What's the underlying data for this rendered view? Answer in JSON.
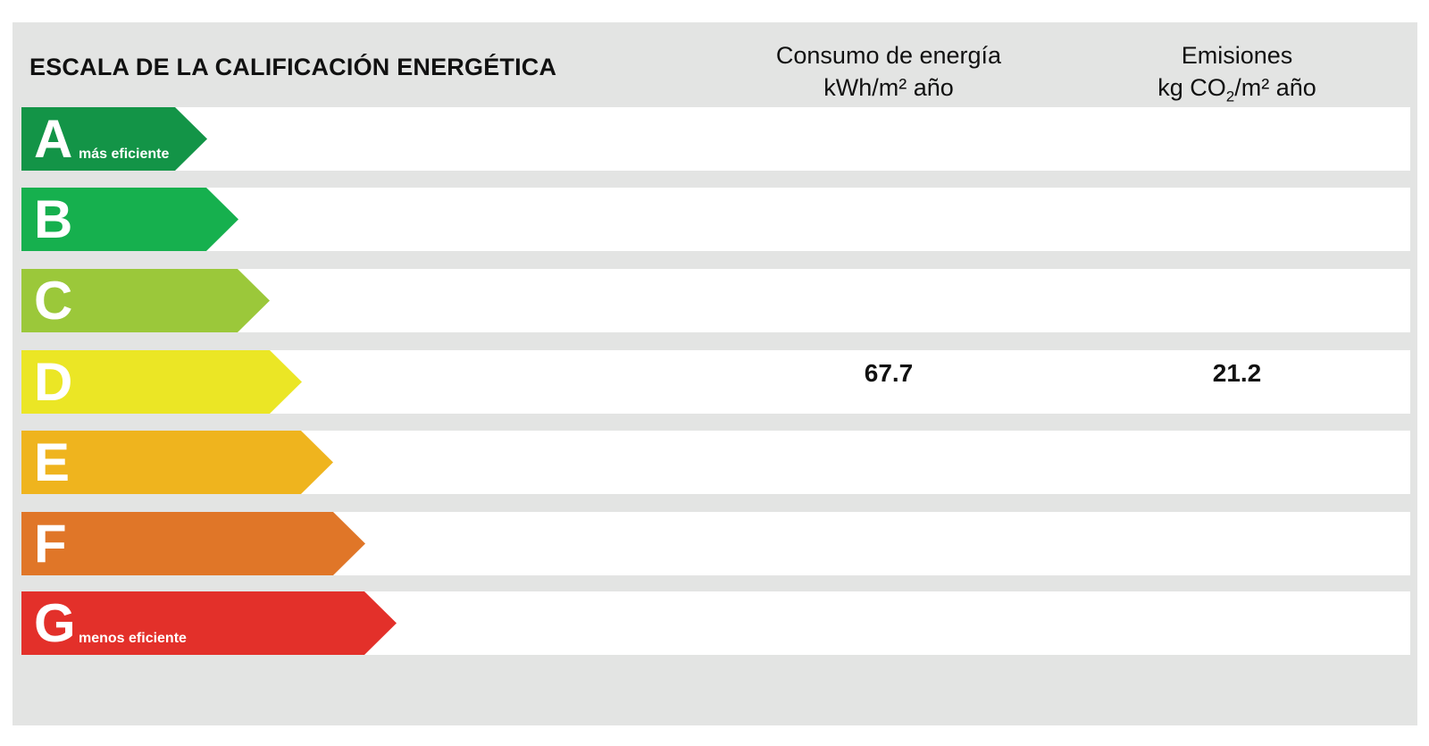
{
  "title": "ESCALA DE LA CALIFICACIÓN ENERGÉTICA",
  "columns": {
    "consumption": {
      "line1": "Consumo de energía",
      "line2": "kWh/m² año"
    },
    "emissions": {
      "line1": "Emisiones",
      "line2_pre": "kg CO",
      "line2_sub": "2",
      "line2_post": "/m² año"
    }
  },
  "ratings": [
    {
      "letter": "A",
      "sub": "más eficiente",
      "color": "#139447",
      "consumption": "",
      "emissions": ""
    },
    {
      "letter": "B",
      "sub": "",
      "color": "#16b04e",
      "consumption": "",
      "emissions": ""
    },
    {
      "letter": "C",
      "sub": "",
      "color": "#9bc83a",
      "consumption": "",
      "emissions": ""
    },
    {
      "letter": "D",
      "sub": "",
      "color": "#ebe625",
      "consumption": "67.7",
      "emissions": "21.2"
    },
    {
      "letter": "E",
      "sub": "",
      "color": "#efb41e",
      "consumption": "",
      "emissions": ""
    },
    {
      "letter": "F",
      "sub": "",
      "color": "#e07628",
      "consumption": "",
      "emissions": ""
    },
    {
      "letter": "G",
      "sub": "menos eficiente",
      "color": "#e3302a",
      "consumption": "",
      "emissions": ""
    }
  ]
}
